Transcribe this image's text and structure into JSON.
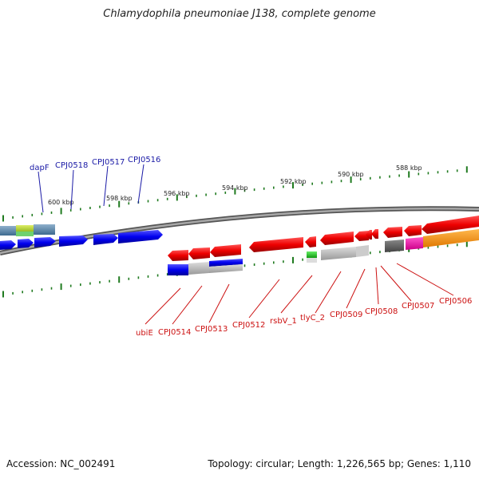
{
  "title": "Chlamydophila pneumoniae J138, complete genome",
  "footer": {
    "accession": "Accession: NC_002491",
    "summary": "Topology: circular; Length: 1,226,565 bp; Genes: 1,110"
  },
  "scale_labels": [
    "600 kbp",
    "598 kbp",
    "596 kbp",
    "594 kbp",
    "592 kbp",
    "590 kbp",
    "588 kbp"
  ],
  "top_gene_labels": [
    "dapF",
    "CPJ0518",
    "CPJ0517",
    "CPJ0516"
  ],
  "bottom_gene_labels": [
    "ubiE",
    "CPJ0514",
    "CPJ0513",
    "CPJ0512",
    "rsbV_1",
    "tlyC_2",
    "CPJ0509",
    "CPJ0508",
    "CPJ0507",
    "CPJ0506"
  ],
  "colors": {
    "forward_cds": "#0000ee",
    "reverse_cds": "#ee0000",
    "backbone": "#7a7a7a",
    "ticks": "#1f7a1f"
  }
}
